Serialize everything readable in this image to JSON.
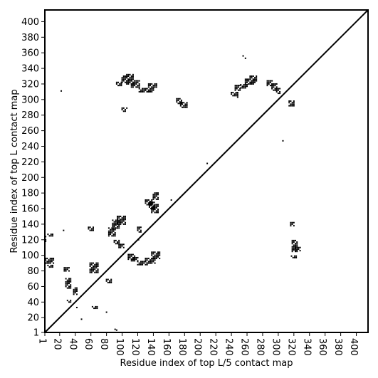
{
  "chart_data": {
    "type": "scatter",
    "title": "",
    "xlabel": "Residue index of top L/5 contact map",
    "ylabel": "Residue index of top L contact map",
    "xlim": [
      1,
      415
    ],
    "ylim": [
      1,
      415
    ],
    "x_ticks": [
      1,
      20,
      40,
      60,
      80,
      100,
      120,
      140,
      160,
      180,
      200,
      220,
      240,
      260,
      280,
      300,
      320,
      340,
      360,
      380,
      400
    ],
    "x_tick_labels": [
      "1",
      "20",
      "40",
      "60",
      "80",
      "100",
      "120",
      "140",
      "160",
      "180",
      "200",
      "220",
      "240",
      "260",
      "280",
      "300",
      "320",
      "340",
      "360",
      "380",
      "400"
    ],
    "y_ticks": [
      1,
      20,
      40,
      60,
      80,
      100,
      120,
      140,
      160,
      180,
      200,
      220,
      240,
      260,
      280,
      300,
      320,
      340,
      360,
      380,
      400
    ],
    "y_tick_labels": [
      "1",
      "20",
      "40",
      "60",
      "80",
      "100",
      "120",
      "140",
      "160",
      "180",
      "200",
      "220",
      "240",
      "260",
      "280",
      "300",
      "320",
      "340",
      "360",
      "380",
      "400"
    ],
    "diagonal": [
      [
        1,
        1
      ],
      [
        415,
        415
      ]
    ],
    "grid": false,
    "legend": "none",
    "colors": {
      "points": "#000000",
      "diagonal": "#000000",
      "frame": "#000000"
    },
    "series": [
      {
        "segments": [
          [
            2,
            118,
            2,
            125
          ],
          [
            5,
            125,
            12,
            127
          ],
          [
            2,
            90,
            12,
            96
          ],
          [
            5,
            85,
            12,
            88
          ],
          [
            26,
            80,
            32,
            85
          ],
          [
            28,
            58,
            34,
            70
          ],
          [
            30,
            40,
            35,
            42
          ],
          [
            38,
            50,
            42,
            58
          ],
          [
            57,
            132,
            64,
            136
          ],
          [
            59,
            78,
            70,
            90
          ],
          [
            62,
            32,
            68,
            34
          ],
          [
            80,
            65,
            86,
            70
          ],
          [
            83,
            125,
            92,
            135
          ],
          [
            88,
            135,
            96,
            145
          ],
          [
            94,
            140,
            104,
            150
          ],
          [
            90,
            115,
            97,
            120
          ],
          [
            96,
            110,
            103,
            115
          ],
          [
            93,
            318,
            100,
            322
          ],
          [
            100,
            322,
            108,
            330
          ],
          [
            106,
            320,
            115,
            332
          ],
          [
            112,
            316,
            122,
            325
          ],
          [
            100,
            285,
            105,
            290
          ],
          [
            122,
            310,
            134,
            314
          ],
          [
            130,
            310,
            140,
            315
          ],
          [
            134,
            316,
            145,
            321
          ],
          [
            108,
            95,
            116,
            102
          ],
          [
            112,
            93,
            120,
            97
          ],
          [
            120,
            88,
            132,
            92
          ],
          [
            130,
            90,
            142,
            96
          ],
          [
            138,
            96,
            148,
            104
          ],
          [
            120,
            130,
            125,
            136
          ],
          [
            130,
            165,
            138,
            172
          ],
          [
            135,
            160,
            142,
            168
          ],
          [
            138,
            155,
            146,
            165
          ],
          [
            140,
            172,
            146,
            180
          ],
          [
            170,
            295,
            176,
            302
          ],
          [
            175,
            290,
            183,
            296
          ],
          [
            240,
            305,
            248,
            310
          ],
          [
            245,
            312,
            252,
            318
          ],
          [
            252,
            315,
            260,
            320
          ],
          [
            258,
            320,
            268,
            326
          ],
          [
            264,
            322,
            272,
            330
          ],
          [
            286,
            318,
            292,
            325
          ],
          [
            292,
            312,
            298,
            320
          ],
          [
            298,
            308,
            302,
            314
          ],
          [
            314,
            292,
            320,
            298
          ],
          [
            316,
            138,
            320,
            142
          ],
          [
            317,
            97,
            323,
            99
          ],
          [
            318,
            105,
            324,
            120
          ],
          [
            322,
            106,
            329,
            110
          ]
        ],
        "points": [
          [
            22,
            311
          ],
          [
            25,
            132
          ],
          [
            42,
            33
          ],
          [
            48,
            18
          ],
          [
            80,
            27
          ],
          [
            91,
            5
          ],
          [
            93,
            4
          ],
          [
            106,
            289
          ],
          [
            121,
            120
          ],
          [
            163,
            171
          ],
          [
            209,
            218
          ],
          [
            255,
            356
          ],
          [
            258,
            353
          ],
          [
            306,
            247
          ],
          [
            248,
            303
          ]
        ]
      }
    ]
  }
}
